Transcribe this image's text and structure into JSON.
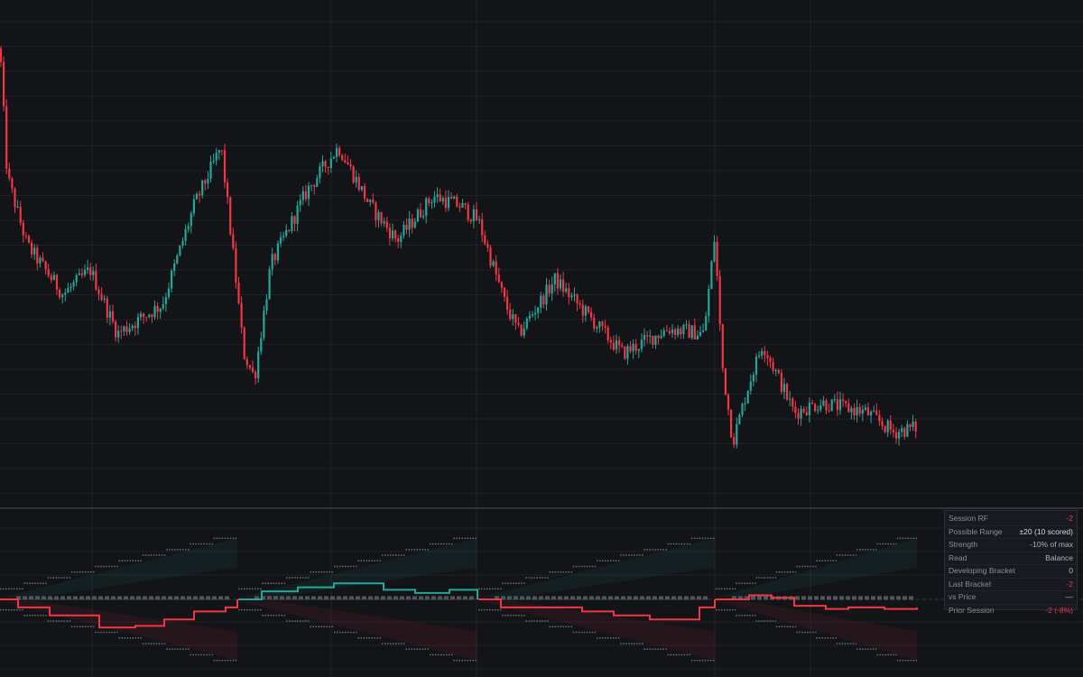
{
  "colors": {
    "background": "#131418",
    "grid": "#1f2228",
    "up": "#26a69a",
    "down": "#f23645",
    "separator": "#3a3d44",
    "neutral_line": "#c8ccd2",
    "bracket_dots": "#6b6f77"
  },
  "info_panel": {
    "rows": [
      {
        "label": "Session RF",
        "value": "-2",
        "tone": "red"
      },
      {
        "label": "Possible Range",
        "value": "±20 (10 scored)",
        "tone": "strong"
      },
      {
        "label": "Strength",
        "value": "-10% of max",
        "tone": "normal"
      },
      {
        "label": "Read",
        "value": "Balance",
        "tone": "normal"
      },
      {
        "label": "Developing Bracket",
        "value": "0",
        "tone": "normal"
      },
      {
        "label": "Last Bracket",
        "value": "-2",
        "tone": "red"
      },
      {
        "label": "vs Price",
        "value": "—",
        "tone": "normal"
      },
      {
        "label": "Prior Session",
        "value": "-2 (-8%)",
        "tone": "red"
      }
    ]
  },
  "chart_data": [
    {
      "type": "candlestick",
      "title": "",
      "ylim": [
        0,
        100
      ],
      "grid": true,
      "trend": [
        [
          0,
          92
        ],
        [
          8,
          66
        ],
        [
          30,
          52
        ],
        [
          70,
          42
        ],
        [
          100,
          47
        ],
        [
          130,
          34
        ],
        [
          180,
          40
        ],
        [
          215,
          60
        ],
        [
          245,
          72
        ],
        [
          262,
          44
        ],
        [
          270,
          30
        ],
        [
          282,
          25
        ],
        [
          300,
          48
        ],
        [
          340,
          63
        ],
        [
          375,
          72
        ],
        [
          410,
          60
        ],
        [
          440,
          53
        ],
        [
          480,
          62
        ],
        [
          510,
          60
        ],
        [
          530,
          57
        ],
        [
          560,
          40
        ],
        [
          575,
          34
        ],
        [
          615,
          45
        ],
        [
          650,
          38
        ],
        [
          690,
          30
        ],
        [
          740,
          35
        ],
        [
          780,
          34
        ],
        [
          792,
          54
        ],
        [
          800,
          28
        ],
        [
          812,
          12
        ],
        [
          830,
          24
        ],
        [
          845,
          32
        ],
        [
          880,
          18
        ],
        [
          910,
          20
        ],
        [
          960,
          18
        ],
        [
          990,
          14
        ],
        [
          1016,
          15
        ]
      ]
    },
    {
      "type": "rotation-factor",
      "ylim": [
        -1,
        1
      ],
      "grid": true,
      "sessions": [
        {
          "start": 0,
          "end": 263,
          "lines": [
            [
              0,
              0
            ],
            [
              20,
              -0.1
            ],
            [
              55,
              -0.2
            ],
            [
              110,
              -0.35
            ],
            [
              150,
              -0.33
            ],
            [
              182,
              -0.25
            ],
            [
              215,
              -0.15
            ],
            [
              250,
              -0.1
            ],
            [
              263,
              0
            ]
          ]
        },
        {
          "start": 264,
          "end": 529,
          "lines": [
            [
              264,
              0
            ],
            [
              290,
              0.1
            ],
            [
              330,
              0.15
            ],
            [
              370,
              0.2
            ],
            [
              425,
              0.12
            ],
            [
              460,
              0.08
            ],
            [
              498,
              0.12
            ],
            [
              529,
              0
            ]
          ]
        },
        {
          "start": 530,
          "end": 792,
          "lines": [
            [
              530,
              0
            ],
            [
              555,
              -0.1
            ],
            [
              595,
              -0.1
            ],
            [
              645,
              -0.15
            ],
            [
              680,
              -0.2
            ],
            [
              720,
              -0.25
            ],
            [
              775,
              -0.1
            ],
            [
              792,
              0
            ]
          ]
        },
        {
          "start": 793,
          "end": 1016,
          "lines": [
            [
              793,
              0
            ],
            [
              830,
              0.05
            ],
            [
              855,
              0.02
            ],
            [
              880,
              -0.08
            ],
            [
              915,
              -0.12
            ],
            [
              940,
              -0.1
            ],
            [
              980,
              -0.12
            ],
            [
              1016,
              -0.1
            ]
          ]
        }
      ]
    }
  ]
}
